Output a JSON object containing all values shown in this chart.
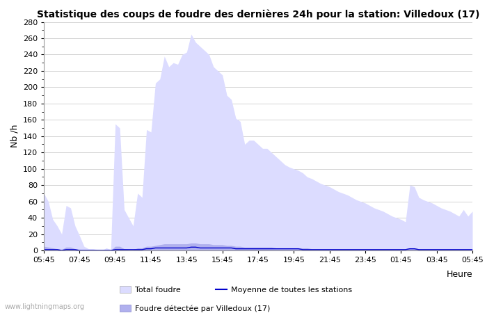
{
  "title": "Statistique des coups de foudre des dernières 24h pour la station: Villedoux (17)",
  "xlabel": "Heure",
  "ylabel": "Nb /h",
  "ylim": [
    0,
    280
  ],
  "yticks": [
    0,
    20,
    40,
    60,
    80,
    100,
    120,
    140,
    160,
    180,
    200,
    220,
    240,
    260,
    280
  ],
  "xtick_labels": [
    "05:45",
    "07:45",
    "09:45",
    "11:45",
    "13:45",
    "15:45",
    "17:45",
    "19:45",
    "21:45",
    "23:45",
    "01:45",
    "03:45",
    "05:45"
  ],
  "background_color": "#ffffff",
  "plot_bg_color": "#ffffff",
  "grid_color": "#cccccc",
  "fill_total_color": "#dcdcff",
  "fill_detected_color": "#b0b0ee",
  "line_mean_color": "#0000cc",
  "watermark": "www.lightningmaps.org",
  "legend_total": "Total foudre",
  "legend_detected": "Foudre détectée par Villedoux (17)",
  "legend_mean": "Moyenne de toutes les stations",
  "total_foudre": [
    70,
    60,
    38,
    30,
    20,
    55,
    52,
    30,
    18,
    5,
    2,
    2,
    1,
    0,
    3,
    1,
    155,
    150,
    50,
    40,
    30,
    70,
    65,
    148,
    145,
    205,
    210,
    238,
    225,
    230,
    228,
    240,
    243,
    265,
    255,
    250,
    245,
    240,
    225,
    220,
    215,
    190,
    185,
    162,
    158,
    130,
    135,
    135,
    130,
    125,
    125,
    120,
    115,
    110,
    105,
    102,
    100,
    98,
    95,
    90,
    88,
    85,
    82,
    80,
    78,
    75,
    72,
    70,
    68,
    65,
    62,
    60,
    58,
    55,
    52,
    50,
    48,
    45,
    42,
    40,
    38,
    35,
    80,
    78,
    65,
    62,
    60,
    58,
    55,
    52,
    50,
    48,
    45,
    42,
    50,
    42,
    48
  ],
  "foudre_detected": [
    5,
    4,
    3,
    2,
    1,
    4,
    4,
    2,
    1,
    0,
    0,
    0,
    0,
    0,
    0,
    0,
    5,
    5,
    2,
    1,
    1,
    3,
    3,
    5,
    5,
    6,
    7,
    8,
    8,
    8,
    8,
    8,
    8,
    9,
    9,
    8,
    8,
    8,
    7,
    7,
    7,
    6,
    6,
    5,
    5,
    4,
    4,
    4,
    4,
    4,
    4,
    4,
    3,
    3,
    3,
    3,
    3,
    3,
    3,
    3,
    2,
    2,
    2,
    2,
    2,
    2,
    2,
    2,
    2,
    2,
    2,
    2,
    2,
    2,
    2,
    2,
    2,
    2,
    2,
    2,
    2,
    2,
    3,
    3,
    2,
    2,
    2,
    2,
    2,
    2,
    2,
    2,
    2,
    2,
    2,
    2,
    2
  ],
  "mean_stations": [
    1,
    1,
    1,
    1,
    0,
    1,
    1,
    1,
    0,
    0,
    0,
    0,
    0,
    0,
    0,
    0,
    1,
    1,
    1,
    1,
    1,
    1,
    1,
    2,
    2,
    3,
    3,
    3,
    3,
    3,
    3,
    3,
    3,
    4,
    4,
    3,
    3,
    3,
    3,
    3,
    3,
    3,
    3,
    2,
    2,
    2,
    2,
    2,
    2,
    2,
    2,
    2,
    2,
    2,
    2,
    2,
    2,
    2,
    1,
    1,
    1,
    1,
    1,
    1,
    1,
    1,
    1,
    1,
    1,
    1,
    1,
    1,
    1,
    1,
    1,
    1,
    1,
    1,
    1,
    1,
    1,
    1,
    2,
    2,
    1,
    1,
    1,
    1,
    1,
    1,
    1,
    1,
    1,
    1,
    1,
    1,
    1
  ]
}
